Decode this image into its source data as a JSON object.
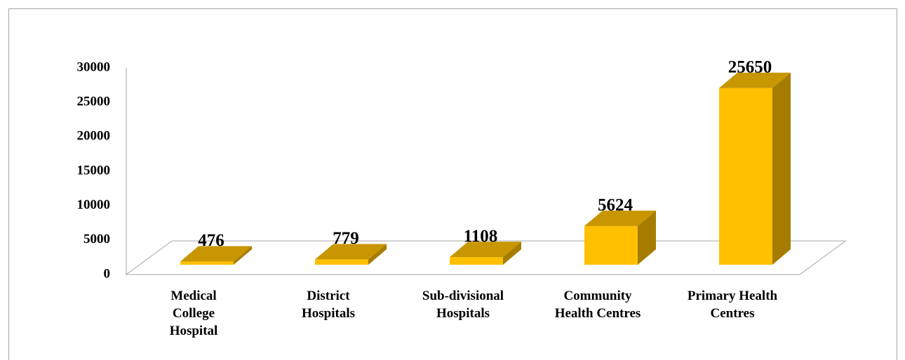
{
  "chart_data": {
    "type": "bar3d",
    "categories": [
      "Medical\nCollege\nHospital",
      "District\nHospitals",
      "Sub-divisional\nHospitals",
      "Community\nHealth Centres",
      "Primary Health\nCentres"
    ],
    "values": [
      476,
      779,
      1108,
      5624,
      25650
    ],
    "color": "#ffc000",
    "ylim": [
      0,
      30000
    ],
    "yticks": [
      0,
      5000,
      10000,
      15000,
      20000,
      25000,
      30000
    ]
  }
}
